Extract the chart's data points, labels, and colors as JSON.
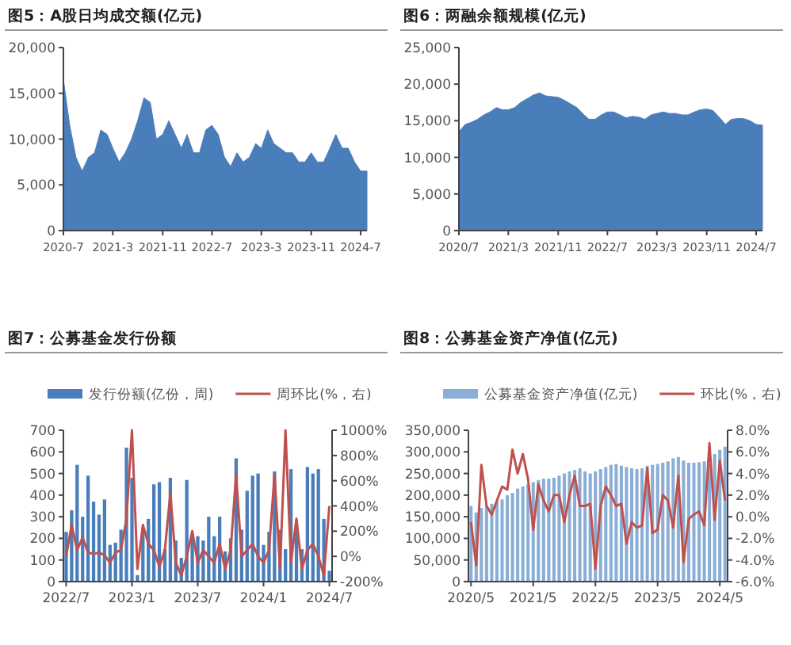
{
  "chart_data": [
    {
      "type": "area",
      "title": "图5：A股日均成交额(亿元)",
      "grid": false,
      "legend": false,
      "x": [
        "2020-07",
        "2020-08",
        "2020-09",
        "2020-10",
        "2020-11",
        "2020-12",
        "2021-01",
        "2021-02",
        "2021-03",
        "2021-04",
        "2021-05",
        "2021-06",
        "2021-07",
        "2021-08",
        "2021-09",
        "2021-10",
        "2021-11",
        "2021-12",
        "2022-01",
        "2022-02",
        "2022-03",
        "2022-04",
        "2022-05",
        "2022-06",
        "2022-07",
        "2022-08",
        "2022-09",
        "2022-10",
        "2022-11",
        "2022-12",
        "2023-01",
        "2023-02",
        "2023-03",
        "2023-04",
        "2023-05",
        "2023-06",
        "2023-07",
        "2023-08",
        "2023-09",
        "2023-10",
        "2023-11",
        "2023-12",
        "2024-01",
        "2024-02",
        "2024-03",
        "2024-04",
        "2024-05",
        "2024-06",
        "2024-07",
        "2024-08"
      ],
      "series": [
        {
          "color": "#4a7ebb",
          "values": [
            16500,
            11500,
            8000,
            6500,
            8000,
            8500,
            11000,
            10500,
            9000,
            7500,
            8500,
            10000,
            12000,
            14500,
            14000,
            10000,
            10500,
            12000,
            10500,
            9000,
            10500,
            8500,
            8500,
            11000,
            11500,
            10500,
            8000,
            7000,
            8500,
            7500,
            8000,
            9500,
            9000,
            11000,
            9500,
            9000,
            8500,
            8500,
            7500,
            7500,
            8500,
            7500,
            7500,
            9000,
            10500,
            9000,
            9000,
            7500,
            6500,
            6500
          ]
        }
      ],
      "xlim": [
        "2020-07",
        "2024-08"
      ],
      "xticks": [
        {
          "value": "2020-07",
          "label": "2020-7"
        },
        {
          "value": "2021-03",
          "label": "2021-3"
        },
        {
          "value": "2021-11",
          "label": "2021-11"
        },
        {
          "value": "2022-07",
          "label": "2022-7"
        },
        {
          "value": "2023-03",
          "label": "2023-3"
        },
        {
          "value": "2023-11",
          "label": "2023-11"
        },
        {
          "value": "2024-07",
          "label": "2024-7"
        }
      ],
      "ylim": [
        0,
        20000
      ],
      "yticks": [
        0,
        {
          "value": 5000,
          "label": "5,000"
        },
        {
          "value": 10000,
          "label": "10,000"
        },
        {
          "value": 15000,
          "label": "15,000"
        },
        {
          "value": 20000,
          "label": "20,000"
        }
      ]
    },
    {
      "type": "area",
      "title": "图6：两融余额规模(亿元)",
      "grid": false,
      "legend": false,
      "x": [
        "2020-07",
        "2020-08",
        "2020-09",
        "2020-10",
        "2020-11",
        "2020-12",
        "2021-01",
        "2021-02",
        "2021-03",
        "2021-04",
        "2021-05",
        "2021-06",
        "2021-07",
        "2021-08",
        "2021-09",
        "2021-10",
        "2021-11",
        "2021-12",
        "2022-01",
        "2022-02",
        "2022-03",
        "2022-04",
        "2022-05",
        "2022-06",
        "2022-07",
        "2022-08",
        "2022-09",
        "2022-10",
        "2022-11",
        "2022-12",
        "2023-01",
        "2023-02",
        "2023-03",
        "2023-04",
        "2023-05",
        "2023-06",
        "2023-07",
        "2023-08",
        "2023-09",
        "2023-10",
        "2023-11",
        "2023-12",
        "2024-01",
        "2024-02",
        "2024-03",
        "2024-04",
        "2024-05",
        "2024-06",
        "2024-07",
        "2024-08"
      ],
      "series": [
        {
          "color": "#4a7ebb",
          "values": [
            13500,
            14500,
            14800,
            15200,
            15800,
            16200,
            16800,
            16500,
            16500,
            16800,
            17500,
            18000,
            18500,
            18800,
            18400,
            18300,
            18200,
            17800,
            17300,
            16800,
            16000,
            15200,
            15200,
            15800,
            16200,
            16200,
            15800,
            15400,
            15600,
            15500,
            15200,
            15800,
            16000,
            16200,
            16000,
            16000,
            15800,
            15800,
            16200,
            16500,
            16600,
            16400,
            15500,
            14500,
            15200,
            15300,
            15300,
            15000,
            14500,
            14400
          ]
        }
      ],
      "xlim": [
        "2020-07",
        "2024-08"
      ],
      "xticks": [
        {
          "value": "2020-07",
          "label": "2020/7"
        },
        {
          "value": "2021-03",
          "label": "2021/3"
        },
        {
          "value": "2021-11",
          "label": "2021/11"
        },
        {
          "value": "2022-07",
          "label": "2022/7"
        },
        {
          "value": "2023-03",
          "label": "2023/3"
        },
        {
          "value": "2023-11",
          "label": "2023/11"
        },
        {
          "value": "2024-07",
          "label": "2024/7"
        }
      ],
      "ylim": [
        0,
        25000
      ],
      "yticks": [
        0,
        {
          "value": 5000,
          "label": "5,000"
        },
        {
          "value": 10000,
          "label": "10,000"
        },
        {
          "value": 15000,
          "label": "15,000"
        },
        {
          "value": 20000,
          "label": "20,000"
        },
        {
          "value": 25000,
          "label": "25,000"
        }
      ]
    },
    {
      "type": "bar",
      "title": "图7：公募基金发行份额",
      "grid": false,
      "legend": "top",
      "categories": [
        "2022/7",
        null,
        null,
        null,
        null,
        null,
        null,
        null,
        null,
        null,
        null,
        null,
        "2023/1",
        null,
        null,
        null,
        null,
        null,
        null,
        null,
        null,
        null,
        null,
        null,
        "2023/7",
        null,
        null,
        null,
        null,
        null,
        null,
        null,
        null,
        null,
        null,
        null,
        "2024/1",
        null,
        null,
        null,
        null,
        null,
        null,
        null,
        null,
        null,
        null,
        null,
        "2024/7"
      ],
      "series": [
        {
          "name": "发行份额(亿份，周)",
          "color": "#4a7ebb",
          "values": [
            230,
            330,
            540,
            300,
            490,
            370,
            310,
            380,
            170,
            180,
            240,
            620,
            480,
            30,
            250,
            290,
            450,
            460,
            150,
            480,
            190,
            110,
            470,
            220,
            210,
            190,
            300,
            210,
            300,
            140,
            200,
            570,
            240,
            420,
            490,
            500,
            170,
            230,
            510,
            240,
            150,
            520,
            240,
            150,
            530,
            500,
            520,
            290,
            50
          ]
        },
        {
          "name": "周环比(%，右)",
          "type": "line",
          "axis": "y2",
          "color": "#c0504d",
          "values": [
            0,
            250,
            50,
            150,
            30,
            20,
            30,
            10,
            -50,
            30,
            50,
            300,
            1000,
            -100,
            250,
            100,
            50,
            -80,
            50,
            500,
            -50,
            -150,
            0,
            200,
            -50,
            50,
            0,
            -50,
            100,
            -100,
            50,
            650,
            0,
            50,
            100,
            0,
            -50,
            50,
            650,
            -100,
            1000,
            -50,
            300,
            -100,
            50,
            100,
            0,
            -150,
            400
          ]
        }
      ],
      "ylim": [
        0,
        700
      ],
      "yticks": [
        0,
        100,
        200,
        300,
        400,
        500,
        600,
        700
      ],
      "y2lim": [
        -200,
        1000
      ],
      "y2ticks": [
        {
          "value": -200,
          "label": "-200%"
        },
        {
          "value": 0,
          "label": "0%"
        },
        {
          "value": 200,
          "label": "200%"
        },
        {
          "value": 400,
          "label": "400%"
        },
        {
          "value": 600,
          "label": "600%"
        },
        {
          "value": 800,
          "label": "800%"
        },
        {
          "value": 1000,
          "label": "1000%"
        }
      ]
    },
    {
      "type": "bar",
      "title": "图8：公募基金资产净值(亿元)",
      "grid": false,
      "legend": "top",
      "categories": [
        "2020/5",
        null,
        null,
        null,
        null,
        null,
        null,
        null,
        null,
        null,
        null,
        null,
        "2021/5",
        null,
        null,
        null,
        null,
        null,
        null,
        null,
        null,
        null,
        null,
        null,
        "2022/5",
        null,
        null,
        null,
        null,
        null,
        null,
        null,
        null,
        null,
        null,
        null,
        "2023/5",
        null,
        null,
        null,
        null,
        null,
        null,
        null,
        null,
        null,
        null,
        null,
        "2024/5",
        null
      ],
      "series": [
        {
          "name": "公募基金资产净值(亿元)",
          "color": "#8aaed6",
          "values": [
            175000,
            160000,
            170000,
            175000,
            180000,
            185000,
            190000,
            200000,
            205000,
            215000,
            220000,
            225000,
            230000,
            235000,
            238000,
            238000,
            240000,
            245000,
            250000,
            255000,
            258000,
            262000,
            255000,
            250000,
            255000,
            260000,
            265000,
            270000,
            272000,
            268000,
            265000,
            262000,
            260000,
            262000,
            268000,
            270000,
            272000,
            275000,
            278000,
            285000,
            288000,
            280000,
            275000,
            275000,
            276000,
            278000,
            272000,
            295000,
            305000,
            312000
          ]
        },
        {
          "name": "环比(%，右)",
          "type": "line",
          "axis": "y2",
          "color": "#c0504d",
          "values": [
            -0.5,
            -4.5,
            4.8,
            1.0,
            0.2,
            1.5,
            2.8,
            2.5,
            6.2,
            4.0,
            5.8,
            3.5,
            -1.2,
            3.0,
            1.5,
            0.5,
            2.0,
            2.0,
            -0.5,
            2.0,
            3.8,
            1.0,
            1.0,
            1.2,
            -4.8,
            1.0,
            2.8,
            2.0,
            1.0,
            1.2,
            -2.5,
            -0.5,
            -1.0,
            -0.8,
            4.5,
            -1.5,
            -1.2,
            2.0,
            1.5,
            -1.0,
            3.8,
            -4.2,
            -0.2,
            0.2,
            0.5,
            -0.8,
            6.8,
            -0.3,
            5.2,
            1.5
          ]
        }
      ],
      "ylim": [
        0,
        350000
      ],
      "yticks": [
        0,
        {
          "value": 50000,
          "label": "50,000"
        },
        {
          "value": 100000,
          "label": "100,000"
        },
        {
          "value": 150000,
          "label": "150,000"
        },
        {
          "value": 200000,
          "label": "200,000"
        },
        {
          "value": 250000,
          "label": "250,000"
        },
        {
          "value": 300000,
          "label": "300,000"
        },
        {
          "value": 350000,
          "label": "350,000"
        }
      ],
      "y2lim": [
        -6,
        8
      ],
      "y2ticks": [
        {
          "value": -6,
          "label": "-6.0%"
        },
        {
          "value": -4,
          "label": "-4.0%"
        },
        {
          "value": -2,
          "label": "-2.0%"
        },
        {
          "value": 0,
          "label": "0.0%"
        },
        {
          "value": 2,
          "label": "2.0%"
        },
        {
          "value": 4,
          "label": "4.0%"
        },
        {
          "value": 6,
          "label": "6.0%"
        },
        {
          "value": 8,
          "label": "8.0%"
        }
      ]
    }
  ]
}
